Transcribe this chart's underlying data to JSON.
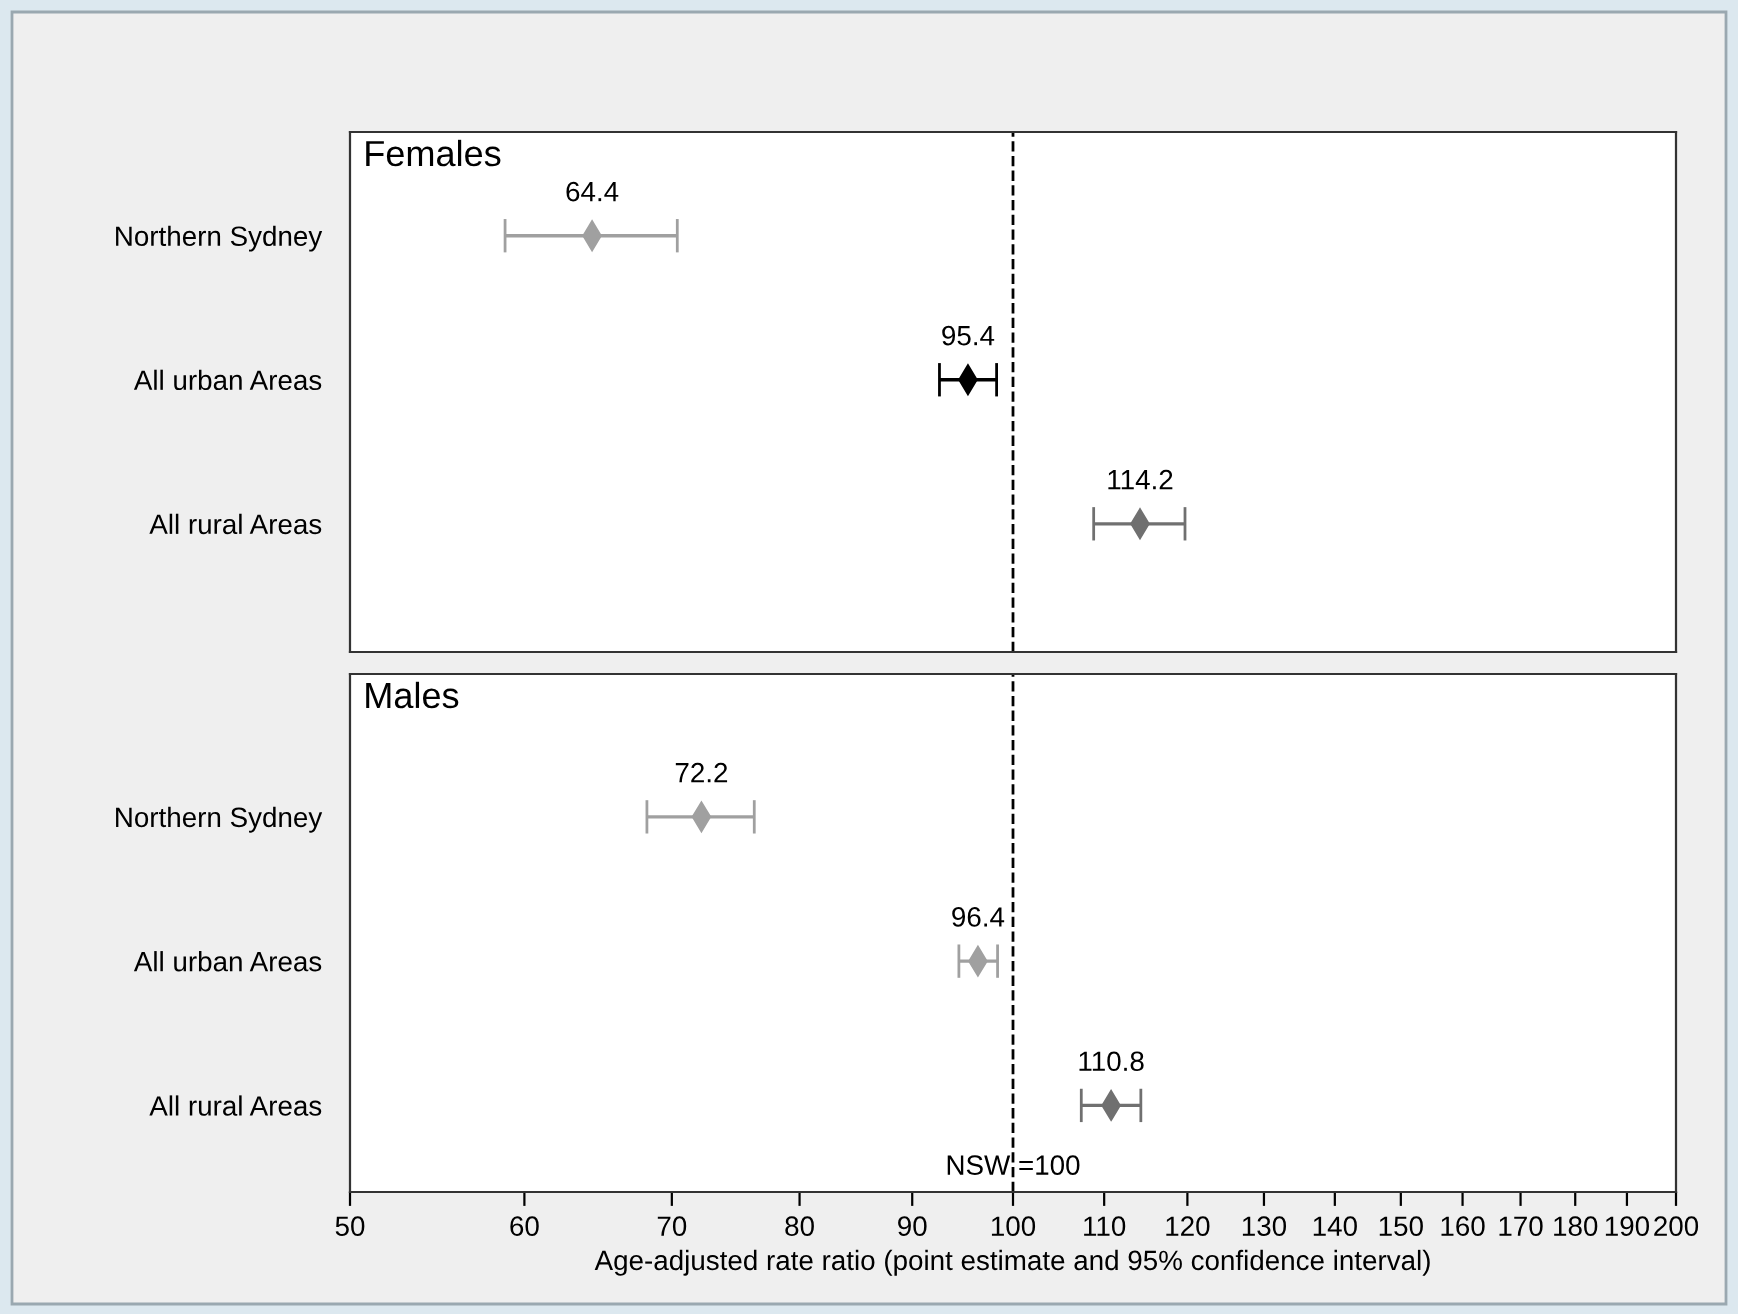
{
  "chart_data": [
    {
      "type": "scatter",
      "title": "Females",
      "orientation": "horizontal",
      "categories": [
        "Northern Sydney",
        "All urban Areas",
        "All rural Areas"
      ],
      "values": [
        64.4,
        95.4,
        114.2
      ],
      "errors": [
        [
          58.8,
          70.4
        ],
        [
          92.6,
          98.3
        ],
        [
          108.8,
          119.7
        ]
      ],
      "colors": [
        "#a0a0a0",
        "#000000",
        "#707070"
      ],
      "data_labels": true,
      "marker": "diamond",
      "log": "x",
      "xlim": [
        50,
        200
      ],
      "xticks": [
        50,
        60,
        70,
        80,
        90,
        100,
        110,
        120,
        130,
        140,
        150,
        160,
        170,
        180,
        190,
        200
      ],
      "ref_lines": [
        {
          "axis": "x",
          "value": 100,
          "line_style": "dashed",
          "color": "#000000"
        }
      ],
      "grid": false,
      "tick_labels": "y"
    },
    {
      "type": "scatter",
      "title": "Males",
      "orientation": "horizontal",
      "categories": [
        "Northern Sydney",
        "All urban Areas",
        "All rural Areas"
      ],
      "values": [
        72.2,
        96.4,
        110.8
      ],
      "errors": [
        [
          68.2,
          76.3
        ],
        [
          94.5,
          98.4
        ],
        [
          107.4,
          114.3
        ]
      ],
      "colors": [
        "#a0a0a0",
        "#a0a0a0",
        "#707070"
      ],
      "data_labels": true,
      "marker": "diamond",
      "log": "x",
      "xlim": [
        50,
        200
      ],
      "xticks": [
        50,
        60,
        70,
        80,
        90,
        100,
        110,
        120,
        130,
        140,
        150,
        160,
        170,
        180,
        190,
        200
      ],
      "xlabel": "Age-adjusted rate ratio (point estimate and 95% confidence interval)",
      "ref_lines": [
        {
          "axis": "x",
          "value": 100,
          "label": "NSW =100",
          "line_style": "dashed",
          "color": "#000000"
        }
      ],
      "grid": false
    }
  ]
}
